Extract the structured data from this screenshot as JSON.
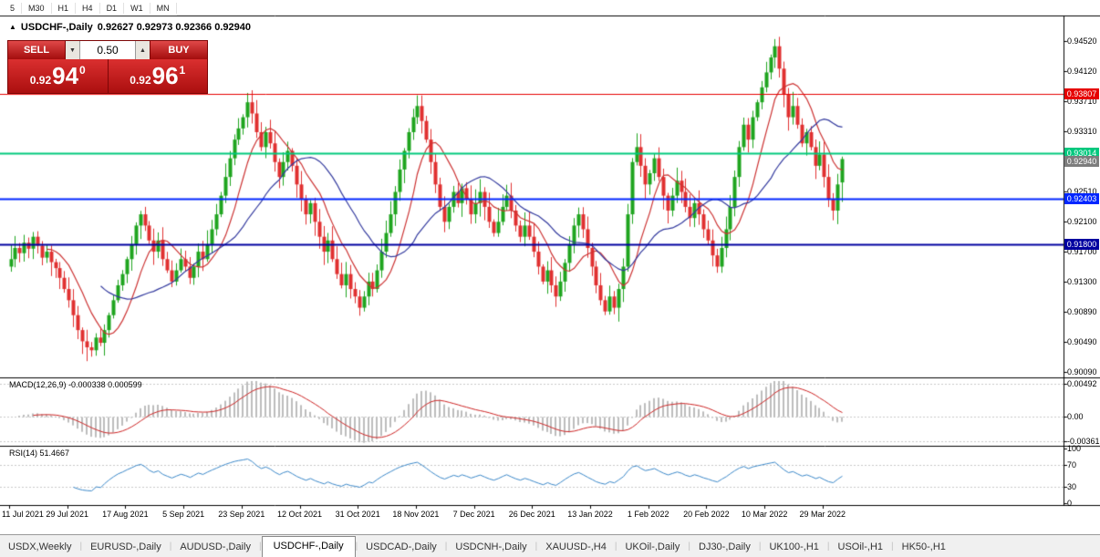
{
  "toolbar": {
    "timeframes": [
      "5",
      "M30",
      "H1",
      "H4",
      "D1",
      "W1",
      "MN"
    ]
  },
  "chart": {
    "collapse_icon": "▲",
    "title": "USDCHF-,Daily",
    "ohlc": "0.92627 0.92973 0.92366 0.92940"
  },
  "trade_panel": {
    "sell_label": "SELL",
    "buy_label": "BUY",
    "volume": "0.50",
    "volume_down_icon": "▼",
    "volume_up_icon": "▲",
    "sell_price": {
      "base": "0.92",
      "big": "94",
      "sup": "0"
    },
    "buy_price": {
      "base": "0.92",
      "big": "96",
      "sup": "1"
    }
  },
  "price_axis": {
    "ticks": [
      "0.94520",
      "0.94120",
      "0.93710",
      "0.93310",
      "0.92510",
      "0.92100",
      "0.91700",
      "0.91300",
      "0.90890",
      "0.90490",
      "0.90090"
    ],
    "levels": [
      {
        "label": "0.93807",
        "color": "#e60000"
      },
      {
        "label": "0.93014",
        "color": "#00c87d"
      },
      {
        "label": "0.92403",
        "color": "#0026ff"
      },
      {
        "label": "0.91800",
        "color": "#0000a0"
      }
    ],
    "current_price": {
      "label": "0.92940",
      "color": "#7d7d7d"
    }
  },
  "macd_panel": {
    "name": "MACD(12,26,9)",
    "values": "-0.000338 0.000599",
    "axis": [
      "0.00492",
      "0.00",
      "-0.00361"
    ]
  },
  "rsi_panel": {
    "name": "RSI(14)",
    "value": "51.4667",
    "axis": [
      "100",
      "70",
      "30",
      "0"
    ]
  },
  "date_axis": {
    "labels": [
      "11 Jul 2021",
      "29 Jul 2021",
      "17 Aug 2021",
      "5 Sep 2021",
      "23 Sep 2021",
      "12 Oct 2021",
      "31 Oct 2021",
      "18 Nov 2021",
      "7 Dec 2021",
      "26 Dec 2021",
      "13 Jan 2022",
      "1 Feb 2022",
      "20 Feb 2022",
      "10 Mar 2022",
      "29 Mar 2022"
    ]
  },
  "tabs": [
    {
      "label": "USDX,Weekly",
      "active": false
    },
    {
      "label": "EURUSD-,Daily",
      "active": false
    },
    {
      "label": "AUDUSD-,Daily",
      "active": false
    },
    {
      "label": "USDCHF-,Daily",
      "active": true
    },
    {
      "label": "USDCAD-,Daily",
      "active": false
    },
    {
      "label": "USDCNH-,Daily",
      "active": false
    },
    {
      "label": "XAUUSD-,H4",
      "active": false
    },
    {
      "label": "UKOil-,Daily",
      "active": false
    },
    {
      "label": "DJ30-,Daily",
      "active": false
    },
    {
      "label": "UK100-,H1",
      "active": false
    },
    {
      "label": "USOil-,H1",
      "active": false
    },
    {
      "label": "HK50-,H1",
      "active": false
    }
  ],
  "chart_data": [
    {
      "type": "candlestick",
      "symbol": "USDCHF-",
      "timeframe": "Daily",
      "current_ohlc": {
        "open": 0.92627,
        "high": 0.92973,
        "low": 0.92366,
        "close": 0.9294
      },
      "ylim": [
        0.90029,
        0.94825
      ],
      "colors": {
        "up": "#1fa51f",
        "down": "#e03030"
      },
      "ma": [
        {
          "period": 9,
          "color": "#cc3333"
        },
        {
          "period": 21,
          "color": "#333a9e"
        }
      ],
      "hlines": [
        {
          "price": 0.93807,
          "color": "#e60000",
          "width": 1
        },
        {
          "price": 0.93014,
          "color": "#00c87d",
          "width": 2
        },
        {
          "price": 0.92403,
          "color": "#0026ff",
          "width": 2
        },
        {
          "price": 0.918,
          "color": "#0000a0",
          "width": 2
        }
      ],
      "closes": [
        0.916,
        0.9175,
        0.9168,
        0.9182,
        0.9174,
        0.919,
        0.9178,
        0.9162,
        0.917,
        0.9156,
        0.9148,
        0.9135,
        0.912,
        0.9105,
        0.9085,
        0.9065,
        0.905,
        0.9042,
        0.9038,
        0.9055,
        0.9048,
        0.9065,
        0.9085,
        0.9105,
        0.9125,
        0.914,
        0.916,
        0.918,
        0.9205,
        0.922,
        0.9205,
        0.9185,
        0.917,
        0.9185,
        0.916,
        0.9145,
        0.913,
        0.9145,
        0.916,
        0.915,
        0.9135,
        0.915,
        0.917,
        0.916,
        0.918,
        0.92,
        0.922,
        0.9245,
        0.927,
        0.9295,
        0.932,
        0.9335,
        0.935,
        0.937,
        0.9355,
        0.933,
        0.931,
        0.933,
        0.9315,
        0.929,
        0.927,
        0.929,
        0.9305,
        0.9285,
        0.926,
        0.924,
        0.922,
        0.9235,
        0.921,
        0.919,
        0.917,
        0.9185,
        0.916,
        0.914,
        0.9125,
        0.914,
        0.912,
        0.911,
        0.9095,
        0.911,
        0.913,
        0.912,
        0.9145,
        0.917,
        0.9195,
        0.922,
        0.925,
        0.928,
        0.9305,
        0.933,
        0.935,
        0.9365,
        0.9345,
        0.932,
        0.929,
        0.926,
        0.923,
        0.921,
        0.923,
        0.925,
        0.9235,
        0.9255,
        0.924,
        0.922,
        0.9235,
        0.925,
        0.923,
        0.921,
        0.9195,
        0.921,
        0.923,
        0.9245,
        0.9225,
        0.9205,
        0.919,
        0.9205,
        0.919,
        0.917,
        0.915,
        0.913,
        0.9145,
        0.9125,
        0.911,
        0.913,
        0.9155,
        0.918,
        0.9205,
        0.922,
        0.92,
        0.9175,
        0.915,
        0.9125,
        0.9105,
        0.909,
        0.911,
        0.9095,
        0.912,
        0.915,
        0.922,
        0.929,
        0.931,
        0.9285,
        0.926,
        0.9275,
        0.9295,
        0.927,
        0.9245,
        0.9225,
        0.9245,
        0.9265,
        0.925,
        0.923,
        0.9215,
        0.9235,
        0.922,
        0.92,
        0.9185,
        0.9165,
        0.915,
        0.9175,
        0.92,
        0.923,
        0.927,
        0.931,
        0.934,
        0.932,
        0.935,
        0.937,
        0.939,
        0.941,
        0.943,
        0.9445,
        0.9415,
        0.938,
        0.935,
        0.9365,
        0.934,
        0.9315,
        0.933,
        0.931,
        0.9285,
        0.93,
        0.927,
        0.924,
        0.9225,
        0.926,
        0.9294
      ]
    },
    {
      "type": "macd",
      "params": [
        12,
        26,
        9
      ],
      "main": -0.000338,
      "signal": 0.000599,
      "ylim": [
        -0.00405,
        0.00545
      ],
      "colors": {
        "histogram": "#bdbdbd",
        "signal": "#cc2222"
      }
    },
    {
      "type": "rsi",
      "period": 14,
      "value": 51.4667,
      "levels": [
        70,
        30
      ],
      "ylim": [
        0,
        100
      ],
      "color": "#3a87c8"
    }
  ]
}
